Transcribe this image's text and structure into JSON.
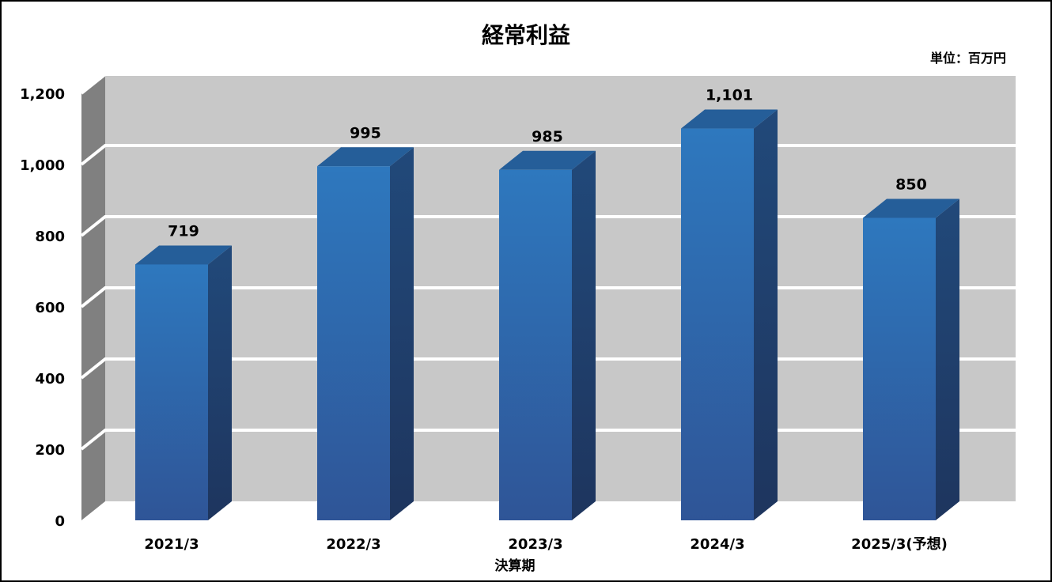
{
  "chart_data": {
    "type": "bar",
    "title": "経常利益",
    "unit": "単位：百万円",
    "xlabel": "決算期",
    "ylabel": "",
    "categories": [
      "2021/3",
      "2022/3",
      "2023/3",
      "2024/3",
      "2025/3(予想)"
    ],
    "values": [
      719,
      995,
      985,
      1101,
      850
    ],
    "value_labels": [
      "719",
      "995",
      "985",
      "1,101",
      "850"
    ],
    "ylim": [
      0,
      1200
    ],
    "yticks": [
      0,
      200,
      400,
      600,
      800,
      1000,
      1200
    ],
    "ytick_labels": [
      "0",
      "200",
      "400",
      "600",
      "800",
      "1,000",
      "1,200"
    ],
    "grid": true,
    "legend": "none",
    "style": "3d-column",
    "colors": {
      "bar_front_top": "#2E78BE",
      "bar_front_bottom": "#2F5597",
      "bar_side": "#1F3D66",
      "bar_top": "#255E99",
      "back_wall": "#C8C8C8",
      "side_wall": "#808080",
      "gridline": "#FFFFFF"
    }
  }
}
